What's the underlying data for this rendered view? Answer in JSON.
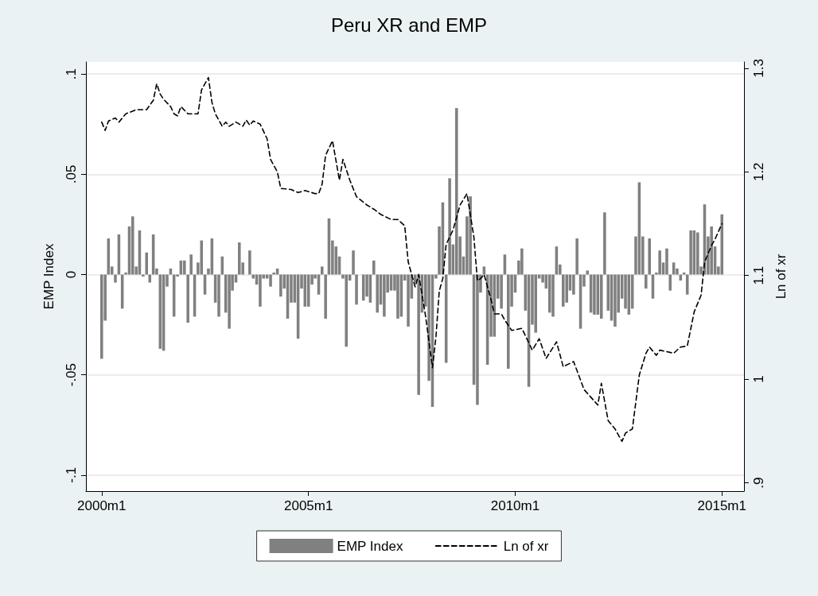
{
  "chart_data": {
    "type": "bar",
    "title": "Peru XR and EMP",
    "ylabel": "EMP Index",
    "y2label": "Ln of xr",
    "xlim": [
      "1999-08-15",
      "2015-07-15"
    ],
    "xticks": [
      {
        "value": "2000-01",
        "label": "2000m1"
      },
      {
        "value": "2005-01",
        "label": "2005m1"
      },
      {
        "value": "2010-01",
        "label": "2010m1"
      },
      {
        "value": "2015-01",
        "label": "2015m1"
      }
    ],
    "ylim": [
      -0.108,
      0.106
    ],
    "yticks": [
      {
        "value": -0.1,
        "label": "-.1"
      },
      {
        "value": -0.05,
        "label": "-.05"
      },
      0,
      {
        "value": 0.05,
        "label": ".05"
      },
      {
        "value": 0.1,
        "label": ".1"
      }
    ],
    "y2lim": [
      0.892,
      1.306
    ],
    "y2ticks": [
      {
        "value": 0.9,
        "label": ".9"
      },
      1,
      1.1,
      1.2,
      1.3
    ],
    "grid": "y",
    "legend": "bottom",
    "x": [
      "2000-01",
      "2000-02",
      "2000-03",
      "2000-04",
      "2000-05",
      "2000-06",
      "2000-07",
      "2000-08",
      "2000-09",
      "2000-10",
      "2000-11",
      "2000-12",
      "2001-01",
      "2001-02",
      "2001-03",
      "2001-04",
      "2001-05",
      "2001-06",
      "2001-07",
      "2001-08",
      "2001-09",
      "2001-10",
      "2001-11",
      "2001-12",
      "2002-01",
      "2002-02",
      "2002-03",
      "2002-04",
      "2002-05",
      "2002-06",
      "2002-07",
      "2002-08",
      "2002-09",
      "2002-10",
      "2002-11",
      "2002-12",
      "2003-01",
      "2003-02",
      "2003-03",
      "2003-04",
      "2003-05",
      "2003-06",
      "2003-07",
      "2003-08",
      "2003-09",
      "2003-10",
      "2003-11",
      "2003-12",
      "2004-01",
      "2004-02",
      "2004-03",
      "2004-04",
      "2004-05",
      "2004-06",
      "2004-07",
      "2004-08",
      "2004-09",
      "2004-10",
      "2004-11",
      "2004-12",
      "2005-01",
      "2005-02",
      "2005-03",
      "2005-04",
      "2005-05",
      "2005-06",
      "2005-07",
      "2005-08",
      "2005-09",
      "2005-10",
      "2005-11",
      "2005-12",
      "2006-01",
      "2006-02",
      "2006-03",
      "2006-04",
      "2006-05",
      "2006-06",
      "2006-07",
      "2006-08",
      "2006-09",
      "2006-10",
      "2006-11",
      "2006-12",
      "2007-01",
      "2007-02",
      "2007-03",
      "2007-04",
      "2007-05",
      "2007-06",
      "2007-07",
      "2007-08",
      "2007-09",
      "2007-10",
      "2007-11",
      "2007-12",
      "2008-01",
      "2008-02",
      "2008-03",
      "2008-04",
      "2008-05",
      "2008-06",
      "2008-07",
      "2008-08",
      "2008-09",
      "2008-10",
      "2008-11",
      "2008-12",
      "2009-01",
      "2009-02",
      "2009-03",
      "2009-04",
      "2009-05",
      "2009-06",
      "2009-07",
      "2009-08",
      "2009-09",
      "2009-10",
      "2009-11",
      "2009-12",
      "2010-01",
      "2010-02",
      "2010-03",
      "2010-04",
      "2010-05",
      "2010-06",
      "2010-07",
      "2010-08",
      "2010-09",
      "2010-10",
      "2010-11",
      "2010-12",
      "2011-01",
      "2011-02",
      "2011-03",
      "2011-04",
      "2011-05",
      "2011-06",
      "2011-07",
      "2011-08",
      "2011-09",
      "2011-10",
      "2011-11",
      "2011-12",
      "2012-01",
      "2012-02",
      "2012-03",
      "2012-04",
      "2012-05",
      "2012-06",
      "2012-07",
      "2012-08",
      "2012-09",
      "2012-10",
      "2012-11",
      "2012-12",
      "2013-01",
      "2013-02",
      "2013-03",
      "2013-04",
      "2013-05",
      "2013-06",
      "2013-07",
      "2013-08",
      "2013-09",
      "2013-10",
      "2013-11",
      "2013-12",
      "2014-01",
      "2014-02",
      "2014-03",
      "2014-04",
      "2014-05",
      "2014-06",
      "2014-07",
      "2014-08",
      "2014-09",
      "2014-10",
      "2014-11",
      "2014-12",
      "2015-01"
    ],
    "series": [
      {
        "name": "EMP Index",
        "color": "#808080",
        "values": [
          -0.042,
          -0.023,
          0.018,
          0.004,
          -0.004,
          0.02,
          -0.017,
          0.001,
          0.024,
          0.029,
          0.004,
          0.022,
          -0.001,
          0.011,
          -0.004,
          0.02,
          0.003,
          -0.037,
          -0.038,
          -0.006,
          0.003,
          -0.021,
          -0.001,
          0.007,
          0.007,
          -0.024,
          0.01,
          -0.021,
          0.006,
          0.017,
          -0.01,
          0.003,
          0.018,
          -0.014,
          -0.021,
          0.009,
          -0.019,
          -0.027,
          -0.008,
          -0.004,
          0.016,
          0.006,
          0.0,
          0.012,
          -0.002,
          -0.005,
          -0.016,
          -0.002,
          -0.002,
          -0.006,
          0.001,
          0.003,
          -0.011,
          -0.007,
          -0.022,
          -0.014,
          -0.014,
          -0.032,
          -0.007,
          -0.016,
          -0.016,
          -0.005,
          -0.002,
          -0.01,
          0.004,
          -0.022,
          0.028,
          0.017,
          0.014,
          0.009,
          -0.002,
          -0.036,
          -0.003,
          0.012,
          -0.015,
          0.0,
          -0.013,
          -0.011,
          -0.014,
          0.007,
          -0.019,
          -0.015,
          -0.021,
          -0.009,
          -0.008,
          -0.008,
          -0.022,
          -0.021,
          -0.003,
          -0.026,
          -0.012,
          -0.004,
          -0.06,
          -0.019,
          -0.016,
          -0.053,
          -0.066,
          -0.002,
          0.024,
          0.036,
          -0.044,
          0.048,
          0.015,
          0.083,
          0.019,
          0.009,
          0.029,
          0.039,
          -0.055,
          -0.065,
          -0.009,
          0.004,
          -0.045,
          -0.031,
          -0.031,
          -0.012,
          -0.017,
          0.01,
          -0.047,
          -0.016,
          -0.009,
          0.007,
          0.013,
          -0.018,
          -0.056,
          -0.025,
          -0.029,
          -0.002,
          -0.004,
          -0.007,
          -0.019,
          -0.021,
          0.014,
          0.005,
          -0.016,
          -0.014,
          -0.008,
          -0.01,
          0.018,
          -0.027,
          -0.006,
          0.002,
          -0.019,
          -0.02,
          -0.02,
          -0.022,
          0.031,
          -0.018,
          -0.023,
          -0.026,
          -0.019,
          -0.012,
          -0.017,
          -0.02,
          -0.017,
          0.019,
          0.046,
          0.019,
          -0.007,
          0.018,
          -0.012,
          0.001,
          0.012,
          0.006,
          0.013,
          -0.008,
          0.006,
          0.003,
          -0.003,
          0.001,
          -0.01,
          0.022,
          0.022,
          0.021,
          0.004,
          0.035,
          0.019,
          0.024,
          0.014,
          0.004,
          0.03
        ]
      },
      {
        "name": "Ln of xr",
        "type": "line",
        "axis": "y2",
        "color": "#000000",
        "line_style": "dashed",
        "marker": "none",
        "x": [
          "2000-01",
          "2000-02",
          "2000-03",
          "2000-05",
          "2000-06",
          "2000-08",
          "2000-11",
          "2001-02",
          "2001-04",
          "2001-05",
          "2001-06",
          "2001-07",
          "2001-09",
          "2001-10",
          "2001-11",
          "2001-12",
          "2002-02",
          "2002-05",
          "2002-06",
          "2002-08",
          "2002-09",
          "2002-10",
          "2002-12",
          "2003-01",
          "2003-02",
          "2003-04",
          "2003-06",
          "2003-07",
          "2003-08",
          "2003-09",
          "2003-11",
          "2004-01",
          "2004-02",
          "2004-04",
          "2004-05",
          "2004-08",
          "2004-10",
          "2004-12",
          "2005-03",
          "2005-04",
          "2005-05",
          "2005-06",
          "2005-08",
          "2005-10",
          "2005-11",
          "2006-01",
          "2006-03",
          "2006-06",
          "2006-08",
          "2006-10",
          "2007-01",
          "2007-03",
          "2007-05",
          "2007-06",
          "2007-08",
          "2007-09",
          "2007-11",
          "2008-01",
          "2008-02",
          "2008-03",
          "2008-04",
          "2008-05",
          "2008-07",
          "2008-09",
          "2008-11",
          "2009-01",
          "2009-02",
          "2009-03",
          "2009-04",
          "2009-06",
          "2009-07",
          "2009-09",
          "2009-10",
          "2009-12",
          "2010-03",
          "2010-06",
          "2010-08",
          "2010-10",
          "2011-01",
          "2011-03",
          "2011-06",
          "2011-09",
          "2012-01",
          "2012-02",
          "2012-04",
          "2012-06",
          "2012-08",
          "2012-09",
          "2012-11",
          "2013-01",
          "2013-03",
          "2013-04",
          "2013-06",
          "2013-07",
          "2013-11",
          "2014-01",
          "2014-03",
          "2014-05",
          "2014-07",
          "2014-08",
          "2014-10",
          "2014-11",
          "2015-01"
        ],
        "values": [
          1.248,
          1.24,
          1.249,
          1.252,
          1.248,
          1.256,
          1.26,
          1.26,
          1.269,
          1.285,
          1.275,
          1.27,
          1.263,
          1.256,
          1.254,
          1.263,
          1.256,
          1.256,
          1.279,
          1.291,
          1.267,
          1.256,
          1.244,
          1.248,
          1.244,
          1.248,
          1.244,
          1.25,
          1.245,
          1.249,
          1.246,
          1.232,
          1.212,
          1.2,
          1.184,
          1.183,
          1.18,
          1.182,
          1.179,
          1.179,
          1.188,
          1.216,
          1.23,
          1.192,
          1.212,
          1.192,
          1.176,
          1.168,
          1.164,
          1.159,
          1.154,
          1.154,
          1.148,
          1.113,
          1.089,
          1.101,
          1.061,
          1.011,
          1.041,
          1.085,
          1.097,
          1.13,
          1.144,
          1.168,
          1.179,
          1.137,
          1.095,
          1.097,
          1.101,
          1.077,
          1.063,
          1.063,
          1.057,
          1.047,
          1.049,
          1.028,
          1.039,
          1.02,
          1.036,
          1.012,
          1.017,
          0.99,
          0.975,
          0.996,
          0.96,
          0.952,
          0.94,
          0.948,
          0.952,
          1.004,
          1.025,
          1.031,
          1.023,
          1.028,
          1.025,
          1.031,
          1.032,
          1.065,
          1.081,
          1.113,
          1.129,
          1.135,
          1.15
        ]
      }
    ]
  }
}
